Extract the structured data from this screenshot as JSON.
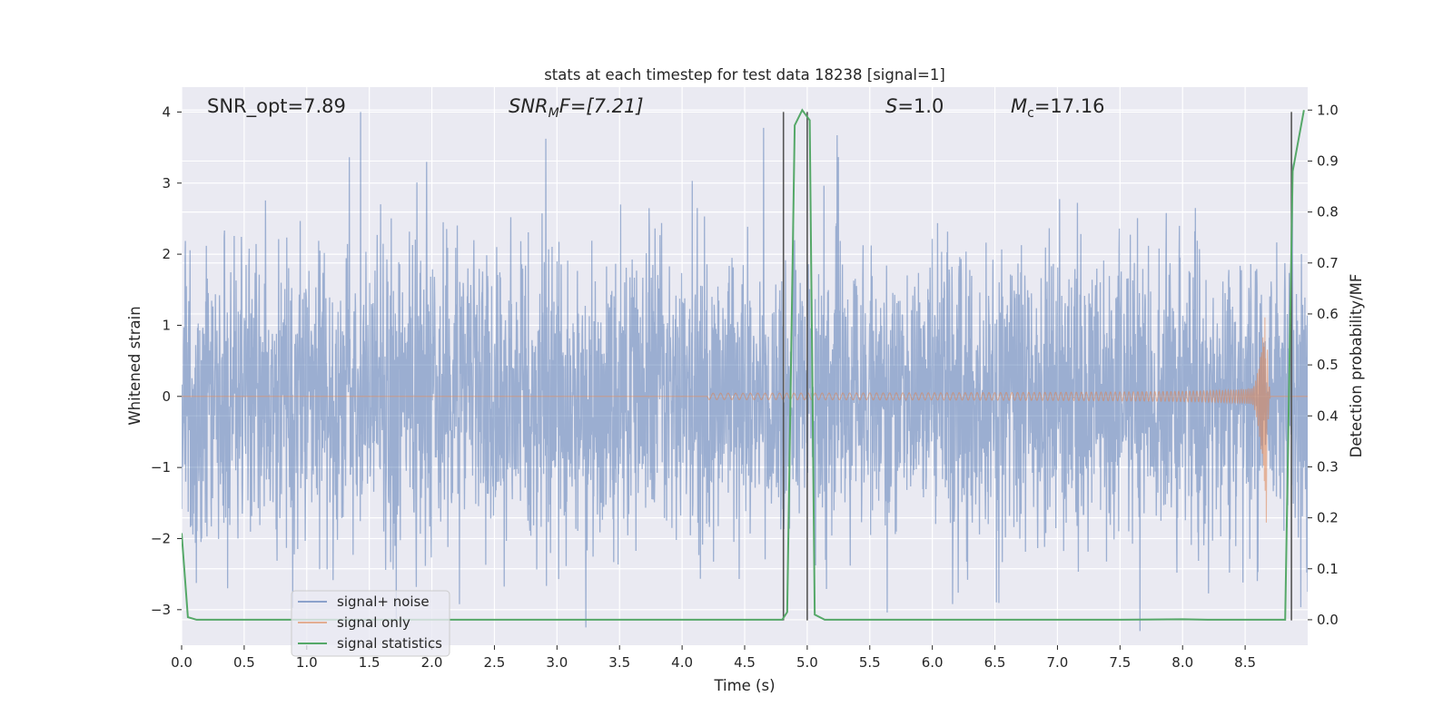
{
  "chart_data": {
    "type": "line",
    "title": "stats at each timestep for test data 18238 [signal=1]",
    "xlabel": "Time (s)",
    "ylabel": "Whitened strain",
    "y2label": "Detection probability/MF",
    "xlim": [
      0.0,
      9.0
    ],
    "ylim": [
      -3.5,
      4.35
    ],
    "y2lim": [
      -0.05,
      1.045
    ],
    "xticks": [
      0.0,
      0.5,
      1.0,
      1.5,
      2.0,
      2.5,
      3.0,
      3.5,
      4.0,
      4.5,
      5.0,
      5.5,
      6.0,
      6.5,
      7.0,
      7.5,
      8.0,
      8.5
    ],
    "xtick_labels": [
      "0.0",
      "0.5",
      "1.0",
      "1.5",
      "2.0",
      "2.5",
      "3.0",
      "3.5",
      "4.0",
      "4.5",
      "5.0",
      "5.5",
      "6.0",
      "6.5",
      "7.0",
      "7.5",
      "8.0",
      "8.5"
    ],
    "yticks": [
      -3,
      -2,
      -1,
      0,
      1,
      2,
      3,
      4
    ],
    "ytick_labels": [
      "−3",
      "−2",
      "−1",
      "0",
      "1",
      "2",
      "3",
      "4"
    ],
    "y2ticks": [
      0.0,
      0.1,
      0.2,
      0.3,
      0.4,
      0.5,
      0.6,
      0.7,
      0.8,
      0.9,
      1.0
    ],
    "y2tick_labels": [
      "0.0",
      "0.1",
      "0.2",
      "0.3",
      "0.4",
      "0.5",
      "0.6",
      "0.7",
      "0.8",
      "0.9",
      "1.0"
    ],
    "grid": true,
    "legend_position": "lower-left",
    "annotations": {
      "snr_opt": "SNR_opt=7.89",
      "snr_mf_base": "SNR",
      "snr_mf_sub": "M",
      "snr_mf_rest": "F=[7.21]",
      "s_var": "S",
      "s_rest": "=1.0",
      "mc_base": "M",
      "mc_sub": "c",
      "mc_rest": "=17.16"
    },
    "vlines": [
      4.81,
      5.0,
      8.87
    ],
    "vline_range": [
      -3.15,
      4.0
    ],
    "series": [
      {
        "name": "signal+ noise",
        "color": "#4c72b0",
        "description": "dense whitened noise, approx N(0,1) spread over full interval"
      },
      {
        "name": "signal only",
        "color": "#dd8452",
        "description": "chirp growing from ~4.2 s to merger at ~8.67 s (peak ~1.3 / ~-1.5)",
        "merger_time": 8.67,
        "peak_upper": 1.3,
        "peak_lower": -1.5
      },
      {
        "name": "signal statistics",
        "color": "#55a868",
        "axis": "right",
        "x": [
          0.0,
          0.05,
          0.12,
          0.3,
          4.5,
          4.8,
          4.84,
          4.9,
          4.96,
          5.02,
          5.06,
          5.14,
          5.5,
          7.5,
          8.0,
          8.2,
          8.82,
          8.88,
          8.97
        ],
        "y": [
          0.17,
          0.005,
          0.0,
          0.0,
          0.0,
          0.0,
          0.015,
          0.97,
          1.0,
          0.98,
          0.01,
          0.0,
          0.0,
          0.0,
          0.001,
          0.0,
          0.0,
          0.88,
          1.0
        ]
      }
    ]
  }
}
